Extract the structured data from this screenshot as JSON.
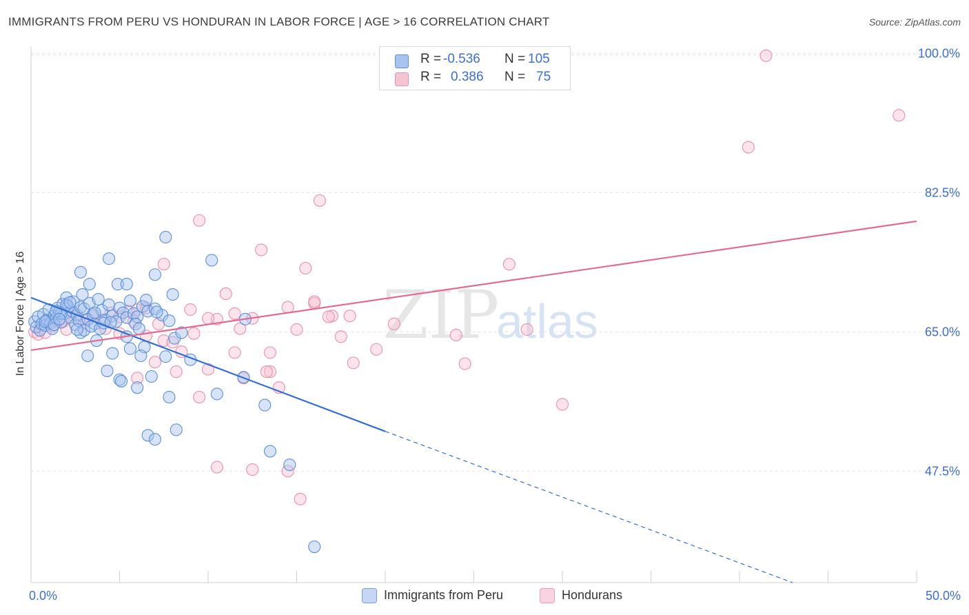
{
  "header": {
    "title": "IMMIGRANTS FROM PERU VS HONDURAN IN LABOR FORCE | AGE > 16 CORRELATION CHART",
    "source": "Source: ZipAtlas.com"
  },
  "stats": {
    "r_label": "R =",
    "n_label": "N =",
    "rows": [
      {
        "r": "-0.536",
        "n": "105"
      },
      {
        "r": "0.386",
        "n": "75"
      }
    ]
  },
  "legend": {
    "items": [
      {
        "label": "Immigrants from Peru"
      },
      {
        "label": "Hondurans"
      }
    ]
  },
  "watermark": {
    "zip": "ZIP",
    "atlas": "atlas"
  },
  "colors": {
    "blue_fill": "#a7c4f0",
    "blue_stroke": "#5b8fd9",
    "blue_line": "#2f6fd1",
    "pink_fill": "#f6c3d3",
    "pink_stroke": "#ea8fab",
    "pink_line": "#e26a93",
    "tick_label": "#3b6fd0"
  },
  "chart_data": {
    "type": "scatter",
    "title": "IMMIGRANTS FROM PERU VS HONDURAN IN LABOR FORCE | AGE > 16 CORRELATION CHART",
    "xlabel": "",
    "ylabel": "In Labor Force | Age > 16",
    "xlim": [
      0,
      50
    ],
    "ylim": [
      33.5,
      101.5
    ],
    "x_tick_labels": [
      "0.0%",
      "50.0%"
    ],
    "y_ticks": [
      47.5,
      65.0,
      82.5,
      100.0
    ],
    "y_tick_labels": [
      "47.5%",
      "65.0%",
      "82.5%",
      "100.0%"
    ],
    "grid": true,
    "legend_position": "bottom-center",
    "series": [
      {
        "name": "Immigrants from Peru",
        "r": -0.536,
        "n": 105,
        "trend": {
          "x0": 0,
          "y0": 69.3,
          "x1": 20,
          "y1": 52.5,
          "dashed_to_x": 43,
          "dashed_to_y": 33.5
        },
        "points": [
          [
            0.2,
            66.3
          ],
          [
            0.3,
            65.6
          ],
          [
            0.4,
            66.9
          ],
          [
            0.5,
            65.2
          ],
          [
            0.6,
            66.0
          ],
          [
            0.7,
            67.2
          ],
          [
            0.8,
            65.8
          ],
          [
            0.9,
            66.5
          ],
          [
            1.0,
            67.8
          ],
          [
            1.1,
            66.1
          ],
          [
            1.2,
            65.4
          ],
          [
            1.3,
            67.0
          ],
          [
            1.4,
            66.7
          ],
          [
            1.5,
            68.0
          ],
          [
            1.6,
            67.5
          ],
          [
            1.7,
            66.2
          ],
          [
            1.8,
            68.5
          ],
          [
            1.9,
            67.3
          ],
          [
            2.0,
            69.3
          ],
          [
            2.1,
            68.2
          ],
          [
            2.2,
            66.8
          ],
          [
            2.3,
            67.6
          ],
          [
            2.4,
            68.8
          ],
          [
            2.5,
            65.9
          ],
          [
            2.6,
            67.1
          ],
          [
            2.7,
            66.4
          ],
          [
            2.8,
            68.1
          ],
          [
            2.9,
            69.7
          ],
          [
            3.0,
            67.9
          ],
          [
            3.2,
            66.6
          ],
          [
            3.3,
            68.6
          ],
          [
            3.5,
            67.2
          ],
          [
            3.6,
            66.0
          ],
          [
            3.8,
            69.1
          ],
          [
            4.0,
            67.7
          ],
          [
            4.2,
            66.5
          ],
          [
            4.4,
            68.4
          ],
          [
            4.6,
            67.0
          ],
          [
            4.8,
            66.3
          ],
          [
            5.0,
            68.0
          ],
          [
            5.2,
            67.4
          ],
          [
            5.4,
            66.8
          ],
          [
            5.6,
            68.9
          ],
          [
            5.8,
            67.3
          ],
          [
            6.0,
            66.9
          ],
          [
            6.3,
            68.2
          ],
          [
            6.6,
            67.6
          ],
          [
            7.0,
            67.9
          ],
          [
            7.4,
            67.1
          ],
          [
            7.8,
            66.4
          ],
          [
            2.8,
            72.5
          ],
          [
            3.3,
            71.0
          ],
          [
            4.4,
            74.2
          ],
          [
            4.9,
            71.0
          ],
          [
            5.4,
            71.0
          ],
          [
            6.5,
            69.0
          ],
          [
            7.0,
            72.2
          ],
          [
            7.6,
            76.9
          ],
          [
            8.0,
            69.7
          ],
          [
            10.2,
            74.0
          ],
          [
            3.2,
            62.0
          ],
          [
            2.8,
            64.9
          ],
          [
            3.7,
            63.9
          ],
          [
            4.3,
            60.1
          ],
          [
            4.6,
            62.3
          ],
          [
            5.0,
            59.0
          ],
          [
            5.4,
            64.4
          ],
          [
            6.0,
            58.0
          ],
          [
            5.1,
            58.8
          ],
          [
            6.4,
            63.1
          ],
          [
            6.8,
            59.4
          ],
          [
            7.8,
            56.8
          ],
          [
            8.2,
            52.7
          ],
          [
            9.0,
            61.5
          ],
          [
            10.5,
            57.2
          ],
          [
            12.0,
            59.3
          ],
          [
            13.2,
            55.8
          ],
          [
            13.5,
            50.0
          ],
          [
            14.6,
            48.3
          ],
          [
            16.0,
            38.0
          ],
          [
            3.0,
            65.2
          ],
          [
            3.4,
            65.7
          ],
          [
            3.9,
            65.4
          ],
          [
            4.1,
            66.1
          ],
          [
            4.5,
            66.2
          ],
          [
            5.6,
            62.9
          ],
          [
            5.9,
            66.0
          ],
          [
            6.2,
            62.0
          ],
          [
            6.1,
            65.4
          ],
          [
            6.6,
            52.0
          ],
          [
            7.0,
            51.5
          ],
          [
            7.6,
            61.9
          ],
          [
            7.1,
            67.5
          ],
          [
            8.1,
            64.2
          ],
          [
            8.5,
            64.9
          ],
          [
            2.0,
            68.4
          ],
          [
            1.7,
            67.3
          ],
          [
            1.4,
            67.6
          ],
          [
            2.2,
            68.7
          ],
          [
            0.8,
            66.3
          ],
          [
            1.3,
            65.9
          ],
          [
            1.6,
            66.6
          ],
          [
            2.6,
            65.3
          ],
          [
            3.6,
            67.4
          ],
          [
            12.1,
            66.6
          ]
        ]
      },
      {
        "name": "Hondurans",
        "r": 0.386,
        "n": 75,
        "trend": {
          "x0": 0,
          "y0": 62.7,
          "x1": 50,
          "y1": 78.9
        },
        "points": [
          [
            0.2,
            65.0
          ],
          [
            0.4,
            64.7
          ],
          [
            0.6,
            65.5
          ],
          [
            0.8,
            64.9
          ],
          [
            1.0,
            66.2
          ],
          [
            1.2,
            65.7
          ],
          [
            1.5,
            66.4
          ],
          [
            2.0,
            65.3
          ],
          [
            2.5,
            66.8
          ],
          [
            3.0,
            66.1
          ],
          [
            3.5,
            67.0
          ],
          [
            4.0,
            66.5
          ],
          [
            4.5,
            67.4
          ],
          [
            5.0,
            66.9
          ],
          [
            5.5,
            67.6
          ],
          [
            6.0,
            67.8
          ],
          [
            6.5,
            68.0
          ],
          [
            7.5,
            73.5
          ],
          [
            8.5,
            62.5
          ],
          [
            9.0,
            67.8
          ],
          [
            9.5,
            79.0
          ],
          [
            10.0,
            60.3
          ],
          [
            10.5,
            66.6
          ],
          [
            11.0,
            69.8
          ],
          [
            11.5,
            67.3
          ],
          [
            12.0,
            59.2
          ],
          [
            12.5,
            66.7
          ],
          [
            13.0,
            75.3
          ],
          [
            13.5,
            62.4
          ],
          [
            14.0,
            58.0
          ],
          [
            14.5,
            47.5
          ],
          [
            15.0,
            65.3
          ],
          [
            15.5,
            73.0
          ],
          [
            16.0,
            68.6
          ],
          [
            16.3,
            81.5
          ],
          [
            17.0,
            67.0
          ],
          [
            17.5,
            64.4
          ],
          [
            18.0,
            67.0
          ],
          [
            19.5,
            62.8
          ],
          [
            20.5,
            66.0
          ],
          [
            24.0,
            64.6
          ],
          [
            24.5,
            61.0
          ],
          [
            27.0,
            73.5
          ],
          [
            28.0,
            65.3
          ],
          [
            30.0,
            55.9
          ],
          [
            40.5,
            88.2
          ],
          [
            41.5,
            99.7
          ],
          [
            49.0,
            92.2
          ],
          [
            5.0,
            64.8
          ],
          [
            6.0,
            59.2
          ],
          [
            6.5,
            64.5
          ],
          [
            7.0,
            61.2
          ],
          [
            7.5,
            63.9
          ],
          [
            8.0,
            63.7
          ],
          [
            9.5,
            56.8
          ],
          [
            10.5,
            48.0
          ],
          [
            11.5,
            62.4
          ],
          [
            12.5,
            47.7
          ],
          [
            13.5,
            60.0
          ],
          [
            14.5,
            68.1
          ],
          [
            15.2,
            44.0
          ],
          [
            16.0,
            68.8
          ],
          [
            16.8,
            66.9
          ],
          [
            18.2,
            61.1
          ],
          [
            1.8,
            66.3
          ],
          [
            2.4,
            67.4
          ],
          [
            3.2,
            66.5
          ],
          [
            4.2,
            65.4
          ],
          [
            5.8,
            66.3
          ],
          [
            7.2,
            66.0
          ],
          [
            8.2,
            60.0
          ],
          [
            9.2,
            64.8
          ],
          [
            10.0,
            66.7
          ],
          [
            11.8,
            65.4
          ],
          [
            13.3,
            60.0
          ]
        ]
      }
    ]
  }
}
